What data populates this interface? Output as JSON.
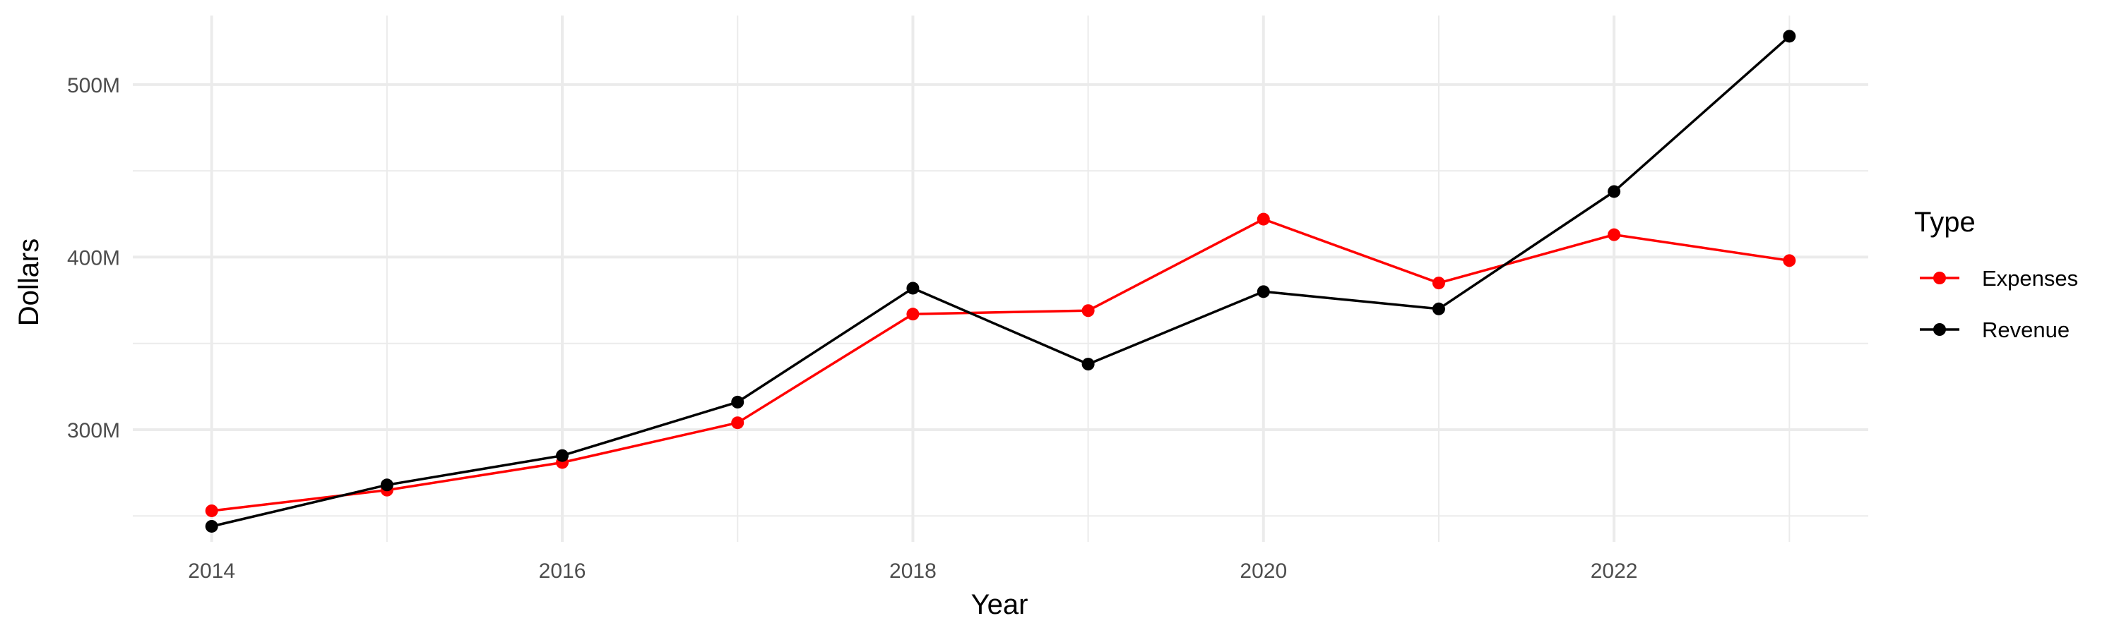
{
  "chart_data": {
    "type": "line",
    "title": "",
    "xlabel": "Year",
    "ylabel": "Dollars",
    "x": [
      2014,
      2015,
      2016,
      2017,
      2018,
      2019,
      2020,
      2021,
      2022,
      2023
    ],
    "x_ticks": [
      2014,
      2016,
      2018,
      2020,
      2022
    ],
    "x_tick_labels": [
      "2014",
      "2016",
      "2018",
      "2020",
      "2022"
    ],
    "xlim": [
      2013.55,
      2023.45
    ],
    "y_ticks": [
      300000000,
      400000000,
      500000000
    ],
    "y_tick_labels": [
      "300M",
      "400M",
      "500M"
    ],
    "ylim": [
      235000000,
      540000000
    ],
    "grid": true,
    "legend": {
      "title": "Type",
      "position": "right"
    },
    "series": [
      {
        "name": "Expenses",
        "color": "#ff0000",
        "values": [
          253000000,
          265000000,
          281000000,
          304000000,
          367000000,
          369000000,
          422000000,
          385000000,
          413000000,
          398000000
        ]
      },
      {
        "name": "Revenue",
        "color": "#000000",
        "values": [
          244000000,
          268000000,
          285000000,
          316000000,
          382000000,
          338000000,
          380000000,
          370000000,
          438000000,
          528000000
        ]
      }
    ]
  }
}
